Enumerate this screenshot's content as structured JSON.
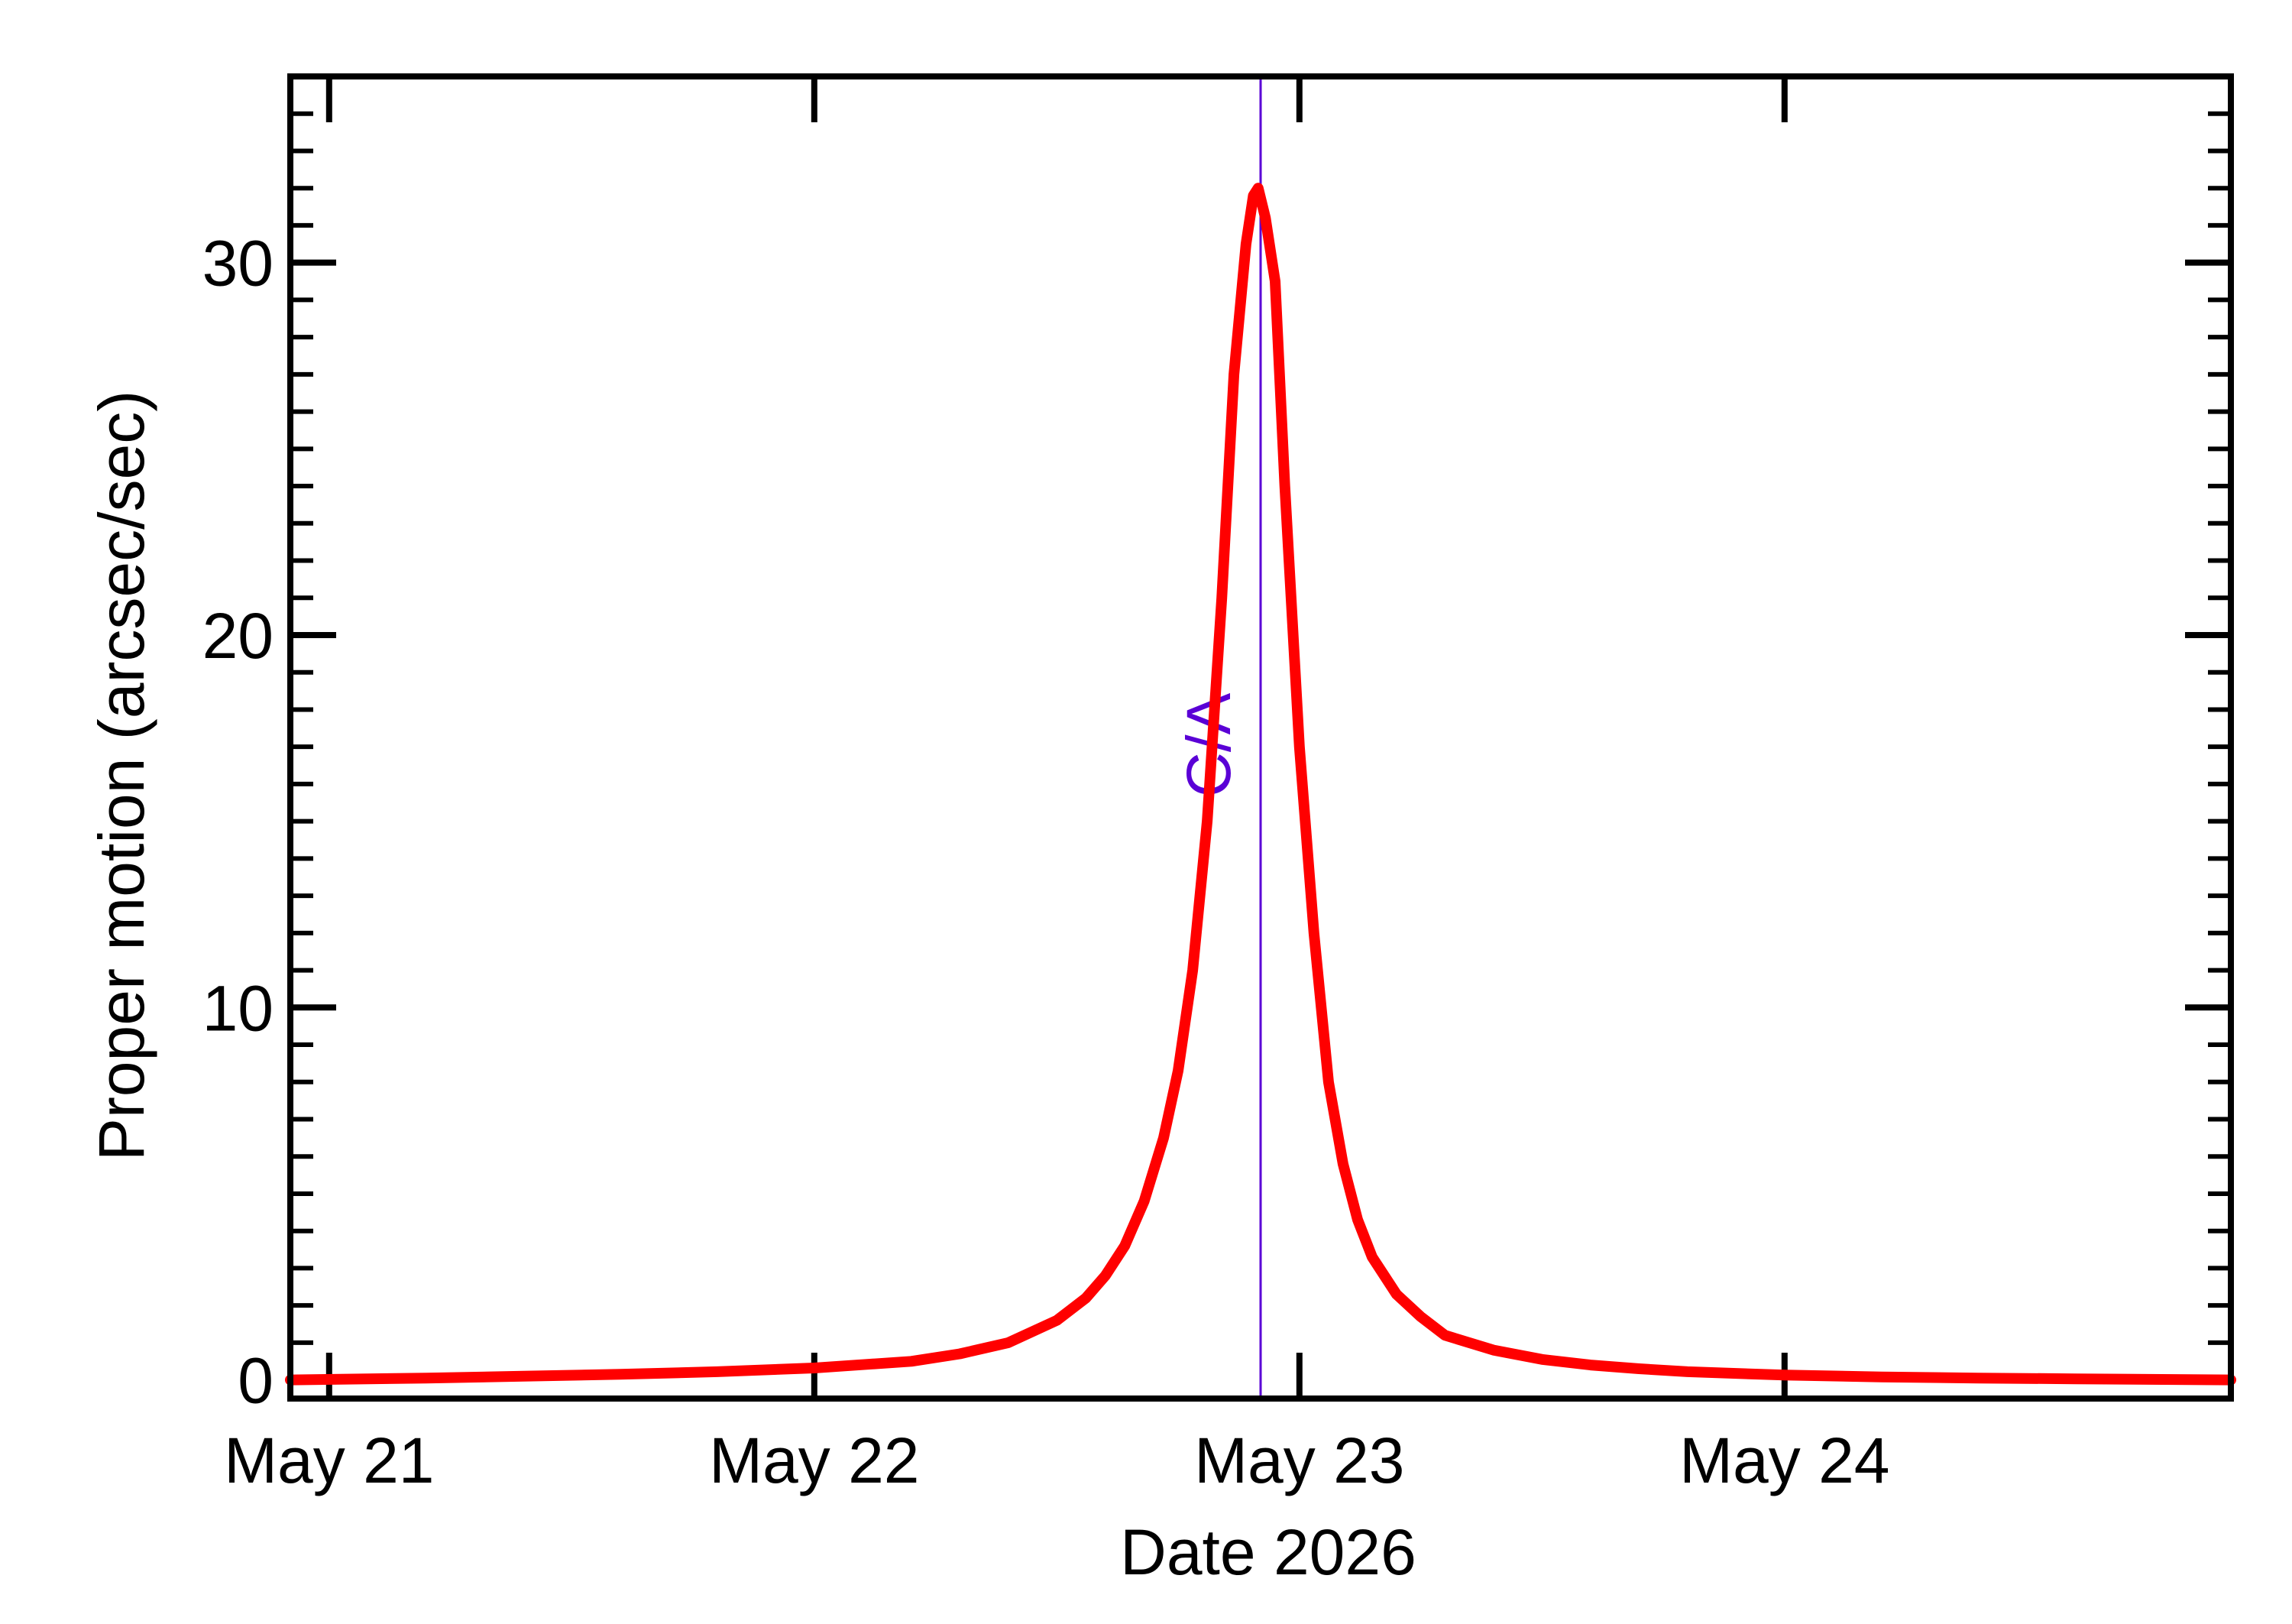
{
  "chart_data": {
    "type": "line",
    "title": "",
    "xlabel": "Date 2026",
    "ylabel": "Proper motion (arcsec/sec)",
    "x_unit": "day of May 2026",
    "xlim": [
      20.92,
      24.92
    ],
    "ylim": [
      -0.5,
      35.0
    ],
    "x_ticks": [
      {
        "value": 21,
        "label": "May 21"
      },
      {
        "value": 22,
        "label": "May 22"
      },
      {
        "value": 23,
        "label": "May 23"
      },
      {
        "value": 24,
        "label": "May 24"
      }
    ],
    "y_ticks": [
      {
        "value": 0,
        "label": "0"
      },
      {
        "value": 10,
        "label": "10"
      },
      {
        "value": 20,
        "label": "20"
      },
      {
        "value": 30,
        "label": "30"
      }
    ],
    "grid": false,
    "legend": "none",
    "series": [
      {
        "color": "#ff0000",
        "x": [
          20.92,
          21.2,
          21.4,
          21.6,
          21.8,
          22.0,
          22.2,
          22.3,
          22.4,
          22.5,
          22.56,
          22.6,
          22.64,
          22.68,
          22.72,
          22.75,
          22.78,
          22.81,
          22.84,
          22.865,
          22.89,
          22.905,
          22.915,
          22.93,
          22.95,
          22.97,
          23.0,
          23.03,
          23.06,
          23.09,
          23.12,
          23.15,
          23.2,
          23.25,
          23.3,
          23.4,
          23.5,
          23.6,
          23.7,
          23.8,
          24.0,
          24.2,
          24.4,
          24.6,
          24.92
        ],
        "y": [
          0.0,
          0.05,
          0.1,
          0.15,
          0.22,
          0.32,
          0.5,
          0.7,
          1.0,
          1.6,
          2.2,
          2.8,
          3.6,
          4.8,
          6.5,
          8.3,
          11.0,
          15.0,
          21.0,
          27.0,
          30.5,
          31.8,
          32.0,
          31.2,
          29.5,
          24.0,
          17.0,
          12.0,
          8.0,
          5.8,
          4.3,
          3.3,
          2.3,
          1.7,
          1.2,
          0.8,
          0.55,
          0.4,
          0.3,
          0.22,
          0.13,
          0.08,
          0.05,
          0.03,
          0.0
        ]
      }
    ],
    "annotations": [
      {
        "type": "vline",
        "x": 22.92,
        "label": "C/A",
        "color": "#5a00d6"
      }
    ]
  }
}
